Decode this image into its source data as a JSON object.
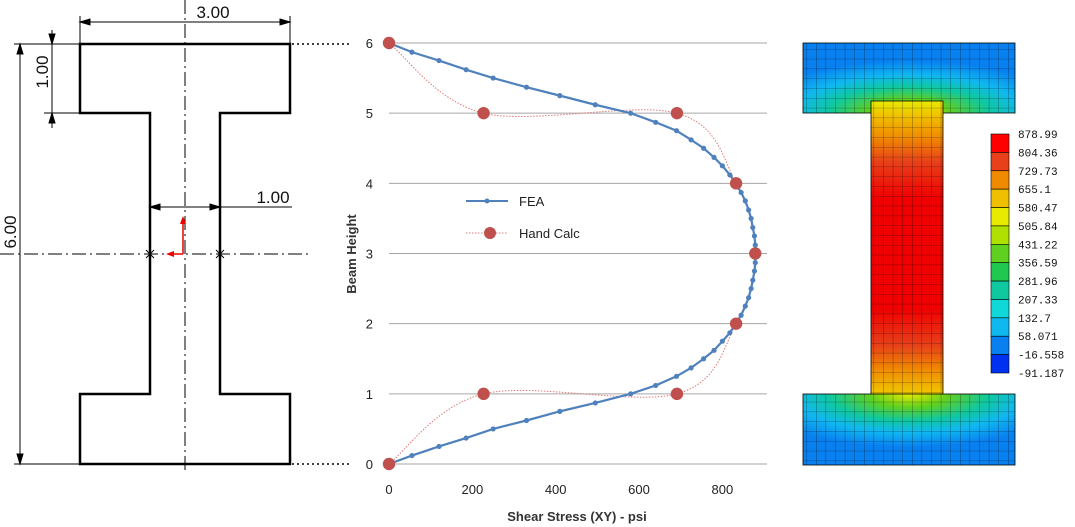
{
  "cad_drawing": {
    "dim_flange_width": "3.00",
    "dim_flange_thickness": "1.00",
    "dim_web_width": "1.00",
    "dim_height": "6.00"
  },
  "chart_data": {
    "type": "line",
    "xlabel": "Shear Stress (XY) - psi",
    "ylabel": "Beam Height",
    "xlim": [
      0,
      900
    ],
    "ylim": [
      0,
      6
    ],
    "xticks": [
      "0",
      "200",
      "400",
      "600",
      "800"
    ],
    "yticks": [
      "0",
      "1",
      "2",
      "3",
      "4",
      "5",
      "6"
    ],
    "grid": "horizontal",
    "legend_position": "center-left",
    "series": [
      {
        "name": "FEA",
        "color": "#4f81bd",
        "marker": "small-circle",
        "points": [
          [
            0,
            0
          ],
          [
            55,
            0.12
          ],
          [
            120,
            0.25
          ],
          [
            185,
            0.37
          ],
          [
            250,
            0.5
          ],
          [
            330,
            0.62
          ],
          [
            410,
            0.75
          ],
          [
            495,
            0.87
          ],
          [
            580,
            1.0
          ],
          [
            640,
            1.12
          ],
          [
            690,
            1.25
          ],
          [
            725,
            1.37
          ],
          [
            755,
            1.5
          ],
          [
            780,
            1.62
          ],
          [
            800,
            1.75
          ],
          [
            818,
            1.87
          ],
          [
            832,
            2.0
          ],
          [
            845,
            2.12
          ],
          [
            855,
            2.25
          ],
          [
            863,
            2.37
          ],
          [
            869,
            2.5
          ],
          [
            873,
            2.62
          ],
          [
            877,
            2.75
          ],
          [
            879,
            2.87
          ],
          [
            880,
            3.0
          ],
          [
            879,
            3.12
          ],
          [
            877,
            3.25
          ],
          [
            873,
            3.37
          ],
          [
            869,
            3.5
          ],
          [
            863,
            3.62
          ],
          [
            855,
            3.75
          ],
          [
            845,
            3.87
          ],
          [
            832,
            4.0
          ],
          [
            818,
            4.12
          ],
          [
            800,
            4.25
          ],
          [
            780,
            4.37
          ],
          [
            755,
            4.5
          ],
          [
            725,
            4.62
          ],
          [
            690,
            4.75
          ],
          [
            640,
            4.87
          ],
          [
            580,
            5.0
          ],
          [
            495,
            5.12
          ],
          [
            410,
            5.25
          ],
          [
            330,
            5.37
          ],
          [
            250,
            5.5
          ],
          [
            185,
            5.62
          ],
          [
            120,
            5.75
          ],
          [
            55,
            5.87
          ],
          [
            0,
            6.0
          ]
        ]
      },
      {
        "name": "Hand Calc",
        "color": "#c0504d",
        "marker": "large-circle",
        "points": [
          [
            0,
            0
          ],
          [
            227,
            1
          ],
          [
            691,
            1
          ],
          [
            833,
            2
          ],
          [
            879,
            3
          ],
          [
            833,
            4
          ],
          [
            691,
            5
          ],
          [
            227,
            5
          ],
          [
            0,
            6
          ]
        ]
      }
    ]
  },
  "contour_legend": {
    "values": [
      "878.99",
      "804.36",
      "729.73",
      "655.1",
      "580.47",
      "505.84",
      "431.22",
      "356.59",
      "281.96",
      "207.33",
      "132.7",
      "58.071",
      "-16.558",
      "-91.187"
    ],
    "colors": [
      "#ff0000",
      "#e8401a",
      "#f08a00",
      "#f0c000",
      "#e8ea00",
      "#b0e000",
      "#60d020",
      "#20c850",
      "#10c8a0",
      "#10d8d8",
      "#10b8f0",
      "#0880f0",
      "#0030f0",
      "#0010c0"
    ]
  }
}
